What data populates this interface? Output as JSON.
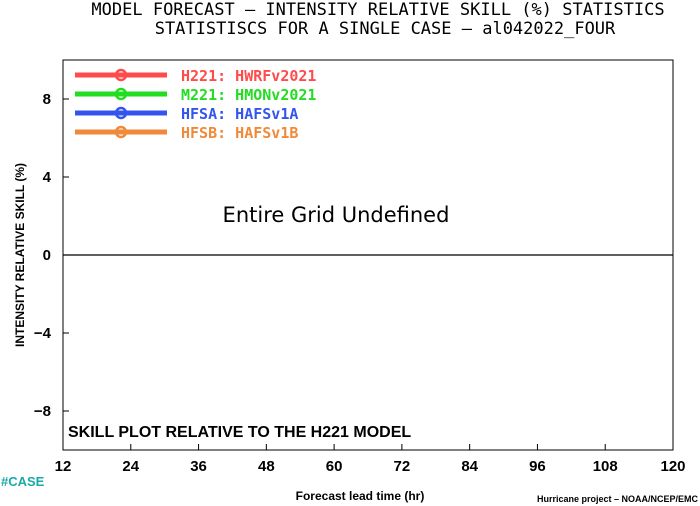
{
  "chart_data": {
    "type": "line",
    "title": "MODEL FORECAST – INTENSITY RELATIVE SKILL (%) STATISTICS",
    "subtitle": "STATISTISCS FOR A SINGLE CASE – al042022_FOUR",
    "xlabel": "Forecast lead time (hr)",
    "ylabel": "INTENSITY RELATIVE SKILL (%)",
    "xlim": [
      12,
      120
    ],
    "ylim": [
      -10,
      10
    ],
    "x_ticks": [
      12,
      24,
      36,
      48,
      60,
      72,
      84,
      96,
      108,
      120
    ],
    "y_ticks": [
      8,
      4,
      0,
      -4,
      -8
    ],
    "y_tick_labels": [
      "8",
      "4",
      "0",
      "−4",
      "−8"
    ],
    "grid": false,
    "reference_line": 0,
    "legend_position": "top-left",
    "series": [
      {
        "name": "H221: HWRFv2021",
        "color": "#ff4b4b",
        "x": [],
        "values": []
      },
      {
        "name": "M221: HMONv2021",
        "color": "#22dd22",
        "x": [],
        "values": []
      },
      {
        "name": "HFSA: HAFSv1A",
        "color": "#3355ee",
        "x": [],
        "values": []
      },
      {
        "name": "HFSB: HAFSv1B",
        "color": "#f08a3a",
        "x": [],
        "values": []
      }
    ],
    "annotations": {
      "undefined_message": "Entire Grid Undefined",
      "skill_note": "SKILL PLOT RELATIVE TO THE H221 MODEL"
    }
  },
  "footer": {
    "case_tag": "#CASE",
    "credit": "Hurricane project – NOAA/NCEP/EMC"
  }
}
